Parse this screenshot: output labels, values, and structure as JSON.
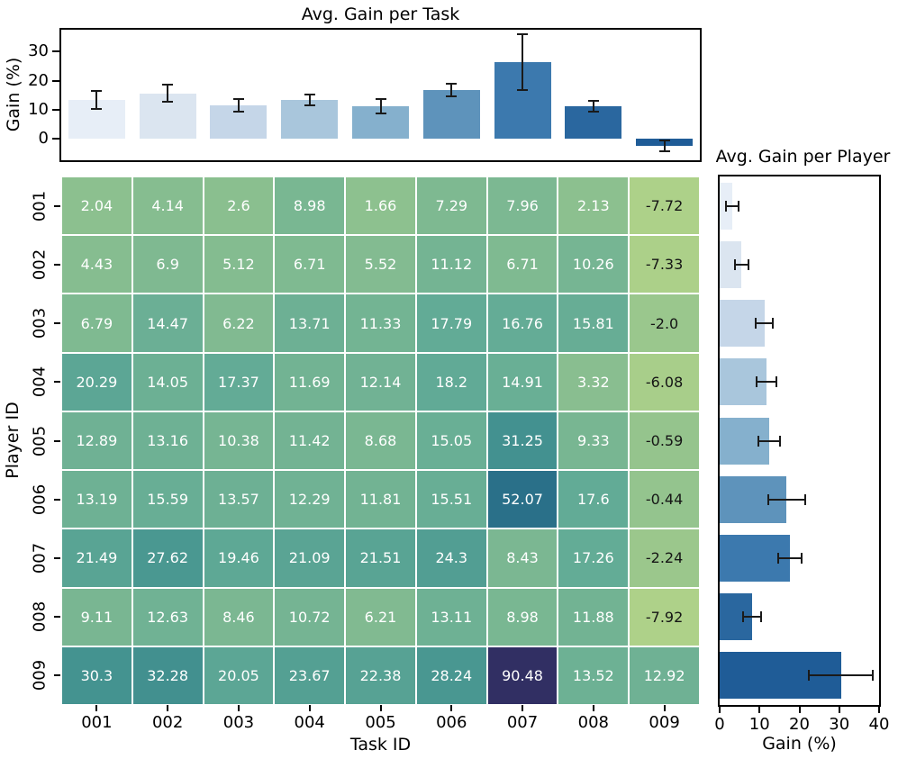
{
  "colors": {
    "background": "#ffffff",
    "spine": "#000000",
    "error_bar": "#1a1a1a",
    "cell_text_positive": "#ffffff",
    "cell_text_negative": "#151515",
    "blues_palette": [
      "#e7eef7",
      "#dbe5f0",
      "#c5d6e8",
      "#a9c6dc",
      "#85b0cd",
      "#5e93bb",
      "#3c79ae",
      "#2a679f",
      "#1f5c97"
    ],
    "heatmap_colormap_stops": [
      [
        0.0,
        "#aed189"
      ],
      [
        0.101,
        "#8cc08f"
      ],
      [
        0.26,
        "#62ab96"
      ],
      [
        0.388,
        "#449390"
      ],
      [
        0.61,
        "#2a7089"
      ],
      [
        1.0,
        "#312f63"
      ]
    ]
  },
  "chart_data": [
    {
      "id": "task_bar",
      "type": "bar",
      "title": "Avg. Gain per Task",
      "ylabel": "Gain (%)",
      "yticks": [
        0,
        10,
        20,
        30
      ],
      "ylim": [
        -7.3,
        37.5
      ],
      "categories": [
        "001",
        "002",
        "003",
        "004",
        "005",
        "006",
        "007",
        "008",
        "009"
      ],
      "values": [
        13.39,
        15.65,
        11.47,
        13.36,
        11.25,
        16.73,
        26.39,
        11.23,
        -2.38
      ],
      "errors": [
        3.0,
        3.0,
        2.1,
        1.85,
        2.4,
        2.15,
        9.5,
        1.9,
        2.0
      ],
      "legend": "none",
      "grid": false
    },
    {
      "id": "heatmap",
      "type": "heatmap",
      "xlabel": "Task ID",
      "ylabel": "Player ID",
      "x_categories": [
        "001",
        "002",
        "003",
        "004",
        "005",
        "006",
        "007",
        "008",
        "009"
      ],
      "y_categories": [
        "001",
        "002",
        "003",
        "004",
        "005",
        "006",
        "007",
        "008",
        "009"
      ],
      "vmin": -7.92,
      "vmax": 90.48,
      "cell_labels": [
        [
          "2.04",
          "4.14",
          "2.6",
          "8.98",
          "1.66",
          "7.29",
          "7.96",
          "2.13",
          "-7.72"
        ],
        [
          "4.43",
          "6.9",
          "5.12",
          "6.71",
          "5.52",
          "11.12",
          "6.71",
          "10.26",
          "-7.33"
        ],
        [
          "6.79",
          "14.47",
          "6.22",
          "13.71",
          "11.33",
          "17.79",
          "16.76",
          "15.81",
          "-2.0"
        ],
        [
          "20.29",
          "14.05",
          "17.37",
          "11.69",
          "12.14",
          "18.2",
          "14.91",
          "3.32",
          "-6.08"
        ],
        [
          "12.89",
          "13.16",
          "10.38",
          "11.42",
          "8.68",
          "15.05",
          "31.25",
          "9.33",
          "-0.59"
        ],
        [
          "13.19",
          "15.59",
          "13.57",
          "12.29",
          "11.81",
          "15.51",
          "52.07",
          "17.6",
          "-0.44"
        ],
        [
          "21.49",
          "27.62",
          "19.46",
          "21.09",
          "21.51",
          "24.3",
          "8.43",
          "17.26",
          "-2.24"
        ],
        [
          "9.11",
          "12.63",
          "8.46",
          "10.72",
          "6.21",
          "13.11",
          "8.98",
          "11.88",
          "-7.92"
        ],
        [
          "30.3",
          "32.28",
          "20.05",
          "23.67",
          "22.38",
          "28.24",
          "90.48",
          "13.52",
          "12.92"
        ]
      ],
      "grid": false
    },
    {
      "id": "player_bar",
      "type": "bar_horizontal",
      "title": "Avg. Gain per Player",
      "xlabel": "Gain (%)",
      "xticks": [
        0,
        10,
        20,
        30,
        40
      ],
      "xlim": [
        0,
        40
      ],
      "categories": [
        "001",
        "002",
        "003",
        "004",
        "005",
        "006",
        "007",
        "008",
        "009"
      ],
      "values": [
        3.23,
        5.49,
        11.21,
        11.77,
        12.4,
        16.8,
        17.66,
        8.13,
        30.43
      ],
      "errors": [
        1.6,
        1.75,
        2.1,
        2.5,
        2.7,
        4.7,
        3.0,
        2.3,
        8.0
      ],
      "legend": "none",
      "grid": false
    }
  ]
}
